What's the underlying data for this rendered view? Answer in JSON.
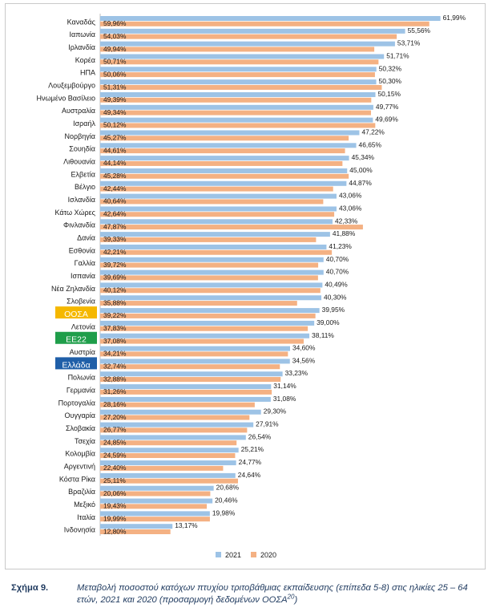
{
  "chart_data": {
    "type": "bar",
    "orientation": "horizontal",
    "categories": [
      "Καναδάς",
      "Ιαπωνία",
      "Ιρλανδία",
      "Κορέα",
      "ΗΠΑ",
      "Λουξεμβούργο",
      "Ηνωμένο Βασίλειο",
      "Αυστραλία",
      "Ισραήλ",
      "Νορβηγία",
      "Σουηδία",
      "Λιθουανία",
      "Ελβετία",
      "Βέλγιο",
      "Ισλανδία",
      "Κάτω Χώρες",
      "Φινλανδία",
      "Δανία",
      "Εσθονία",
      "Γαλλία",
      "Ισπανία",
      "Νέα Ζηλανδία",
      "Σλοβενία",
      "ΟΟΣΑ",
      "Λετονία",
      "ΕΕ22",
      "Αυστρία",
      "Ελλάδα",
      "Πολωνία",
      "Γερμανία",
      "Πορτογαλία",
      "Ουγγαρία",
      "Σλοβακία",
      "Τσεχία",
      "Κολομβία",
      "Αργεντινή",
      "Κόστα Ρίκα",
      "Βραζιλία",
      "Μεξικό",
      "Ιταλία",
      "Ινδονησία"
    ],
    "series": [
      {
        "name": "2021",
        "color": "#9dc3e6",
        "values": [
          61.99,
          55.56,
          53.71,
          51.71,
          50.32,
          50.3,
          50.15,
          49.77,
          49.69,
          47.22,
          46.65,
          45.34,
          45.0,
          44.87,
          43.06,
          43.06,
          42.33,
          41.88,
          41.23,
          40.7,
          40.7,
          40.49,
          40.3,
          39.95,
          39.0,
          38.11,
          34.6,
          34.56,
          33.23,
          31.14,
          31.08,
          29.3,
          27.91,
          26.54,
          25.21,
          24.77,
          24.64,
          20.68,
          20.46,
          19.98,
          13.17
        ],
        "labels": [
          "61,99%",
          "55,56%",
          "53,71%",
          "51,71%",
          "50,32%",
          "50,30%",
          "50,15%",
          "49,77%",
          "49,69%",
          "47,22%",
          "46,65%",
          "45,34%",
          "45,00%",
          "44,87%",
          "43,06%",
          "43,06%",
          "42,33%",
          "41,88%",
          "41,23%",
          "40,70%",
          "40,70%",
          "40,49%",
          "40,30%",
          "39,95%",
          "39,00%",
          "38,11%",
          "34,60%",
          "34,56%",
          "33,23%",
          "31,14%",
          "31,08%",
          "29,30%",
          "27,91%",
          "26,54%",
          "25,21%",
          "24,77%",
          "24,64%",
          "20,68%",
          "20,46%",
          "19,98%",
          "13,17%"
        ]
      },
      {
        "name": "2020",
        "color": "#f4b183",
        "values": [
          59.96,
          54.03,
          49.94,
          50.71,
          50.06,
          51.31,
          49.39,
          49.34,
          50.12,
          45.27,
          44.61,
          44.14,
          45.28,
          42.44,
          40.64,
          42.64,
          47.87,
          39.33,
          42.21,
          39.72,
          39.69,
          40.12,
          35.88,
          39.22,
          37.83,
          37.08,
          34.21,
          32.74,
          32.88,
          31.26,
          28.16,
          27.2,
          26.77,
          24.85,
          24.59,
          22.4,
          25.11,
          20.06,
          19.43,
          19.99,
          12.8
        ],
        "labels": [
          "59,96%",
          "54,03%",
          "49,94%",
          "50,71%",
          "50,06%",
          "51,31%",
          "49,39%",
          "49,34%",
          "50,12%",
          "45,27%",
          "44,61%",
          "44,14%",
          "45,28%",
          "42,44%",
          "40,64%",
          "42,64%",
          "47,87%",
          "39,33%",
          "42,21%",
          "39,72%",
          "39,69%",
          "40,12%",
          "35,88%",
          "39,22%",
          "37,83%",
          "37,08%",
          "34,21%",
          "32,74%",
          "32,88%",
          "31,26%",
          "28,16%",
          "27,20%",
          "26,77%",
          "24,85%",
          "24,59%",
          "22,40%",
          "25,11%",
          "20,06%",
          "19,43%",
          "19,99%",
          "12,80%"
        ]
      }
    ],
    "highlighted_categories": [
      {
        "category": "ΟΟΣΑ",
        "color": "#f5b800"
      },
      {
        "category": "ΕΕ22",
        "color": "#1f9e4a"
      },
      {
        "category": "Ελλάδα",
        "color": "#1f5fa8"
      }
    ],
    "xlim": [
      0,
      62
    ],
    "grid": false,
    "legend_position": "bottom-center"
  },
  "caption": {
    "label": "Σχήμα 9.",
    "text": "Μεταβολή ποσοστού κατόχων πτυχίου τριτοβάθμιας εκπαίδευσης (επίπεδα 5-8) στις ηλικίες 25 – 64 ετών, 2021 και 2020 (προσαρμογή δεδομένων ΟΟΣΑ",
    "superscript": "20",
    "closing": ")"
  }
}
